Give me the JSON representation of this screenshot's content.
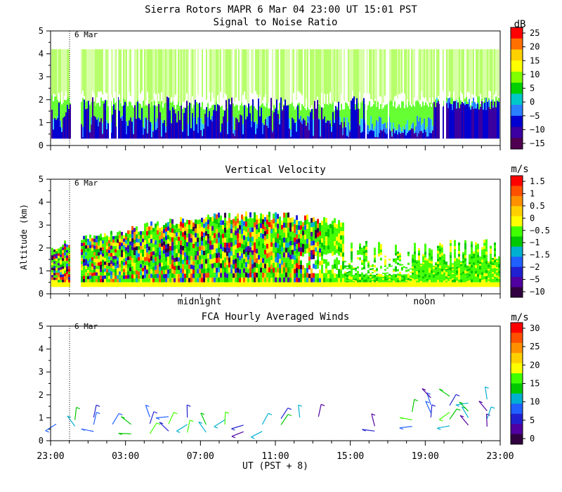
{
  "header": {
    "title": "Sierra Rotors   MAPR   6 Mar 04   23:00 UT   15:01   PST",
    "date_marker": "6 Mar"
  },
  "axes": {
    "y_label": "Altitude (km)",
    "x_label": "UT  (PST + 8)",
    "y_ticks": [
      "0",
      "1",
      "2",
      "3",
      "4",
      "5"
    ],
    "ylim": [
      0,
      5
    ],
    "x_ticks": [
      "23:00",
      "03:00",
      "07:00",
      "11:00",
      "15:00",
      "19:00",
      "23:00"
    ],
    "local_time_labels": [
      "midnight",
      "noon"
    ]
  },
  "chart_data": [
    {
      "type": "heatmap",
      "title": "Signal to Noise Ratio",
      "ylabel": "Altitude (km)",
      "ylim": [
        0,
        5
      ],
      "colorbar": {
        "unit": "dB",
        "ticks": [
          "25",
          "20",
          "15",
          "10",
          "5",
          "0",
          "−5",
          "−10",
          "−15"
        ],
        "colors": [
          "#ff0000",
          "#ff7000",
          "#ffd000",
          "#ffff00",
          "#80ff00",
          "#00d000",
          "#00c8c8",
          "#2a7fff",
          "#0000d0",
          "#3a00a0",
          "#500050"
        ]
      }
    },
    {
      "type": "heatmap",
      "title": "Vertical Velocity",
      "ylabel": "Altitude (km)",
      "ylim": [
        0,
        5
      ],
      "colorbar": {
        "unit": "m/s",
        "ticks": [
          "1.5",
          "1",
          "0.5",
          "0",
          "−0.5",
          "−1",
          "−1.5",
          "−2",
          "−5",
          "−10"
        ],
        "colors": [
          "#ff0000",
          "#ff5000",
          "#ff9000",
          "#ffd000",
          "#ffff00",
          "#40ff00",
          "#00c800",
          "#00b0d0",
          "#2060ff",
          "#2020d0",
          "#5000a0",
          "#300040"
        ]
      }
    },
    {
      "type": "scatter",
      "title": "FCA Hourly Averaged Winds",
      "ylabel": "Altitude (km)",
      "ylim": [
        0,
        5
      ],
      "colorbar": {
        "unit": "m/s",
        "ticks": [
          "30",
          "25",
          "20",
          "15",
          "10",
          "5",
          "0"
        ],
        "colors": [
          "#ff0000",
          "#ff5000",
          "#ff9000",
          "#ffd000",
          "#ffff00",
          "#40ff00",
          "#00c800",
          "#00b0d0",
          "#2060ff",
          "#2020d0",
          "#5000a0",
          "#300040"
        ]
      }
    }
  ]
}
